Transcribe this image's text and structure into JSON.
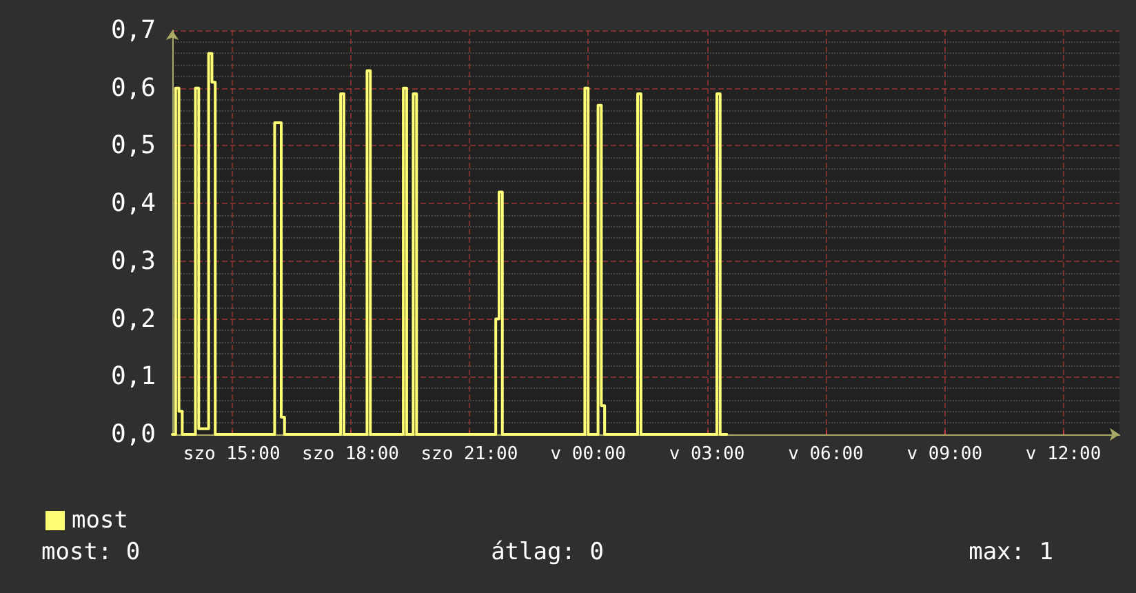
{
  "chart_data": {
    "type": "step",
    "categories": [
      null,
      null,
      null,
      null,
      null,
      null,
      null,
      null,
      null,
      null,
      null,
      null,
      null,
      null,
      null,
      null,
      null,
      null,
      "szo 15:00",
      null,
      null,
      null,
      null,
      null,
      null,
      null,
      null,
      null,
      null,
      null,
      null,
      null,
      null,
      null,
      null,
      null,
      null,
      null,
      null,
      null,
      null,
      null,
      null,
      null,
      null,
      null,
      null,
      null,
      null,
      null,
      null,
      null,
      null,
      null,
      "szo 18:00",
      null,
      null,
      null,
      null,
      null,
      null,
      null,
      null,
      null,
      null,
      null,
      null,
      null,
      null,
      null,
      null,
      null,
      null,
      null,
      null,
      null,
      null,
      null,
      null,
      null,
      null,
      null,
      null,
      null,
      null,
      null,
      null,
      null,
      null,
      null,
      "szo 21:00",
      null,
      null,
      null,
      null,
      null,
      null,
      null,
      null,
      null,
      null,
      null,
      null,
      null,
      null,
      null,
      null,
      null,
      null,
      null,
      null,
      null,
      null,
      null,
      null,
      null,
      null,
      null,
      null,
      null,
      null,
      null,
      null,
      null,
      null,
      null,
      "v 00:00",
      null,
      null,
      null,
      null,
      null,
      null,
      null,
      null,
      null,
      null,
      null,
      null,
      null,
      null,
      null,
      null,
      null,
      null,
      null,
      null,
      null,
      null,
      null,
      null,
      null,
      null,
      null,
      null,
      null,
      null,
      null,
      null,
      null,
      null,
      null,
      "v 03:00",
      null,
      null,
      null,
      null,
      null,
      null,
      null,
      null,
      null,
      null,
      null,
      null,
      null,
      null,
      null,
      null,
      null,
      null,
      null,
      null,
      null,
      null,
      null,
      null,
      null,
      null,
      null,
      null,
      null,
      null,
      null,
      null,
      null,
      null,
      null,
      "v 06:00",
      null,
      null,
      null,
      null,
      null,
      null,
      null,
      null,
      null,
      null,
      null,
      null,
      null,
      null,
      null,
      null,
      null,
      null,
      null,
      null,
      null,
      null,
      null,
      null,
      null,
      null,
      null,
      null,
      null,
      null,
      null,
      null,
      null,
      null,
      null,
      "v 09:00",
      null,
      null,
      null,
      null,
      null,
      null,
      null,
      null,
      null,
      null,
      null,
      null,
      null,
      null,
      null,
      null,
      null,
      null,
      null,
      null,
      null,
      null,
      null,
      null,
      null,
      null,
      null,
      null,
      null,
      null,
      null,
      null,
      null,
      null,
      null,
      "v 12:00",
      null,
      null,
      null,
      null,
      null,
      null,
      null,
      null,
      null,
      null,
      null,
      null,
      null,
      null,
      null,
      null,
      null
    ],
    "series": [
      {
        "name": "most",
        "color": "#ffff77",
        "values": [
          0,
          0.6,
          0.04,
          0,
          0,
          0,
          0,
          0.6,
          0.01,
          0.01,
          0.01,
          0.66,
          0.61,
          0,
          0,
          0,
          0,
          0,
          0,
          0,
          0,
          0,
          0,
          0,
          0,
          0,
          0,
          0,
          0,
          0,
          0,
          0.54,
          0.54,
          0.03,
          0,
          0,
          0,
          0,
          0,
          0,
          0,
          0,
          0,
          0,
          0,
          0,
          0,
          0,
          0,
          0,
          0,
          0.59,
          0,
          0,
          0,
          0,
          0,
          0,
          0,
          0.63,
          0,
          0,
          0,
          0,
          0,
          0,
          0,
          0,
          0,
          0,
          0.6,
          0,
          0,
          0.59,
          0,
          0,
          0,
          0,
          0,
          0,
          0,
          0,
          0,
          0,
          0,
          0,
          0,
          0,
          0,
          0,
          0,
          0,
          0,
          0,
          0,
          0,
          0,
          0,
          0.2,
          0.42,
          0,
          0,
          0,
          0,
          0,
          0,
          0,
          0,
          0,
          0,
          0,
          0,
          0,
          0,
          0,
          0,
          0,
          0,
          0,
          0,
          0,
          0,
          0,
          0,
          0,
          0.6,
          0,
          0,
          0,
          0.57,
          0.05,
          0,
          0,
          0,
          0,
          0,
          0,
          0,
          0,
          0,
          0,
          0.59,
          0,
          0,
          0,
          0,
          0,
          0,
          0,
          0,
          0,
          0,
          0,
          0,
          0,
          0,
          0,
          0,
          0,
          0,
          0,
          0,
          0,
          0,
          0,
          0.59,
          0,
          0,
          null,
          null,
          null,
          null,
          null,
          null,
          null,
          null,
          null,
          null,
          null,
          null,
          null,
          null,
          null,
          null,
          null,
          null,
          null,
          null,
          null,
          null,
          null,
          null,
          null,
          null,
          null,
          null,
          null,
          null,
          null,
          null,
          null,
          null,
          null,
          null,
          null,
          null,
          null,
          null,
          null,
          null,
          null,
          null,
          null,
          null,
          null,
          null,
          null,
          null,
          null,
          null,
          null,
          null,
          null,
          null,
          null,
          null,
          null,
          null,
          null,
          null,
          null,
          null,
          null,
          null,
          null,
          null,
          null,
          null,
          null,
          null,
          null,
          null,
          null,
          null,
          null,
          null,
          null,
          null,
          null,
          null,
          null,
          null,
          null,
          null,
          null,
          null,
          null,
          null,
          null,
          null,
          null,
          null,
          null,
          null,
          null,
          null,
          null,
          null,
          null,
          null,
          null,
          null,
          null,
          null,
          null,
          null,
          null,
          null,
          null,
          null,
          null,
          null,
          null,
          null,
          null,
          null,
          null,
          null
        ]
      }
    ],
    "ylim": [
      0,
      0.7
    ],
    "yticks": [
      {
        "value": 0,
        "label": "0,0"
      },
      {
        "value": 0.1,
        "label": "0,1"
      },
      {
        "value": 0.2,
        "label": "0,2"
      },
      {
        "value": 0.3,
        "label": "0,3"
      },
      {
        "value": 0.4,
        "label": "0,4"
      },
      {
        "value": 0.5,
        "label": "0,5"
      },
      {
        "value": 0.6,
        "label": "0,6"
      },
      {
        "value": 0.7,
        "label": "0,7"
      }
    ],
    "grid": true,
    "legend": "bottom",
    "marker": "none",
    "line_style": "solid",
    "annotations": [
      "most: 0",
      "átlag: 0",
      "max: 1"
    ]
  }
}
